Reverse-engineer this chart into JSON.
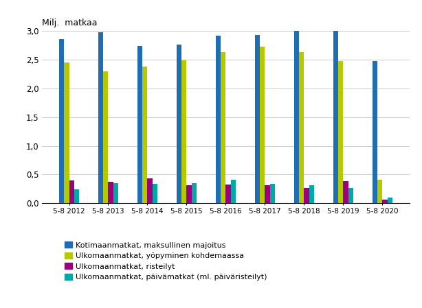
{
  "years": [
    "5-8 2012",
    "5-8 2013",
    "5-8 2014",
    "5-8 2015",
    "5-8 2016",
    "5-8 2017",
    "5-8 2018",
    "5-8 2019",
    "5-8 2020"
  ],
  "series": {
    "Kotimaanmatkat, maksullinen majoitus": [
      2.86,
      2.97,
      2.74,
      2.76,
      2.91,
      2.93,
      3.01,
      3.01,
      2.47
    ],
    "Ulkomaanmatkat, yöpyminen kohdemaassa": [
      2.45,
      2.3,
      2.38,
      2.48,
      2.63,
      2.73,
      2.63,
      2.47,
      0.41
    ],
    "Ulkomaanmatkat, risteilyt": [
      0.4,
      0.37,
      0.43,
      0.32,
      0.33,
      0.32,
      0.27,
      0.39,
      0.06
    ],
    "Ulkomaanmatkat, päivämatkat (ml. päiväristeilyt)": [
      0.24,
      0.35,
      0.34,
      0.35,
      0.41,
      0.34,
      0.32,
      0.27,
      0.1
    ]
  },
  "colors": [
    "#1f6eb5",
    "#b5c900",
    "#9b007d",
    "#00a8a8"
  ],
  "ylabel": "Milj.  matkaa",
  "ylim": [
    0,
    3.0
  ],
  "yticks": [
    0.0,
    0.5,
    1.0,
    1.5,
    2.0,
    2.5,
    3.0
  ],
  "ytick_labels": [
    "0,0",
    "0,5",
    "1,0",
    "1,5",
    "2,0",
    "2,5",
    "3,0"
  ],
  "legend_labels": [
    "Kotimaanmatkat, maksullinen majoitus",
    "Ulkomaanmatkat, yöpyminen kohdemaassa",
    "Ulkomaanmatkat, risteilyt",
    "Ulkomaanmatkat, päivämatkat (ml. päiväristeilyt)"
  ],
  "background_color": "#ffffff",
  "grid_color": "#cccccc"
}
